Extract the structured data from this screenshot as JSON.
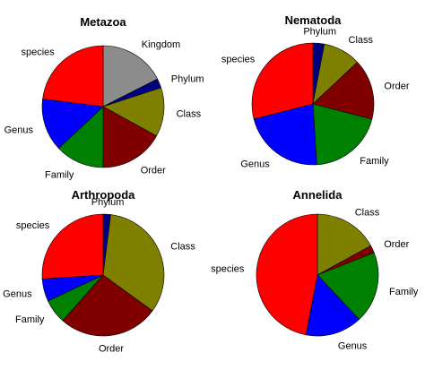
{
  "chart_data": [
    {
      "type": "pie",
      "title": "Metazoa",
      "start_angle_deg": 0,
      "direction": "clockwise",
      "slices": [
        {
          "label": "Kingdom",
          "value": 17.5,
          "color": "#8c8c8c"
        },
        {
          "label": "Phylum",
          "value": 2.5,
          "color": "#000080"
        },
        {
          "label": "Class",
          "value": 13.0,
          "color": "#808000"
        },
        {
          "label": "Order",
          "value": 17.0,
          "color": "#800000"
        },
        {
          "label": "Family",
          "value": 13.0,
          "color": "#008000"
        },
        {
          "label": "Genus",
          "value": 14.0,
          "color": "#0000ff"
        },
        {
          "label": "species",
          "value": 23.0,
          "color": "#ff0000"
        }
      ]
    },
    {
      "type": "pie",
      "title": "Nematoda",
      "start_angle_deg": 0,
      "direction": "clockwise",
      "slices": [
        {
          "label": "Phylum",
          "value": 3.0,
          "color": "#000080"
        },
        {
          "label": "Class",
          "value": 10.0,
          "color": "#808000"
        },
        {
          "label": "Order",
          "value": 16.0,
          "color": "#800000"
        },
        {
          "label": "Family",
          "value": 20.0,
          "color": "#008000"
        },
        {
          "label": "Genus",
          "value": 22.0,
          "color": "#0000ff"
        },
        {
          "label": "species",
          "value": 29.0,
          "color": "#ff0000"
        }
      ]
    },
    {
      "type": "pie",
      "title": "Arthropoda",
      "start_angle_deg": 0,
      "direction": "clockwise",
      "slices": [
        {
          "label": "Phylum",
          "value": 2.0,
          "color": "#000080"
        },
        {
          "label": "Class",
          "value": 33.0,
          "color": "#808000"
        },
        {
          "label": "Order",
          "value": 26.5,
          "color": "#800000"
        },
        {
          "label": "Family",
          "value": 6.5,
          "color": "#008000"
        },
        {
          "label": "Genus",
          "value": 6.0,
          "color": "#0000ff"
        },
        {
          "label": "species",
          "value": 26.0,
          "color": "#ff0000"
        }
      ]
    },
    {
      "type": "pie",
      "title": "Annelida",
      "start_angle_deg": 0,
      "direction": "clockwise",
      "slices": [
        {
          "label": "Class",
          "value": 17.0,
          "color": "#808000"
        },
        {
          "label": "Order",
          "value": 2.0,
          "color": "#800000"
        },
        {
          "label": "Family",
          "value": 19.0,
          "color": "#008000"
        },
        {
          "label": "Genus",
          "value": 15.0,
          "color": "#0000ff"
        },
        {
          "label": "species",
          "value": 47.0,
          "color": "#ff0000"
        }
      ]
    }
  ]
}
